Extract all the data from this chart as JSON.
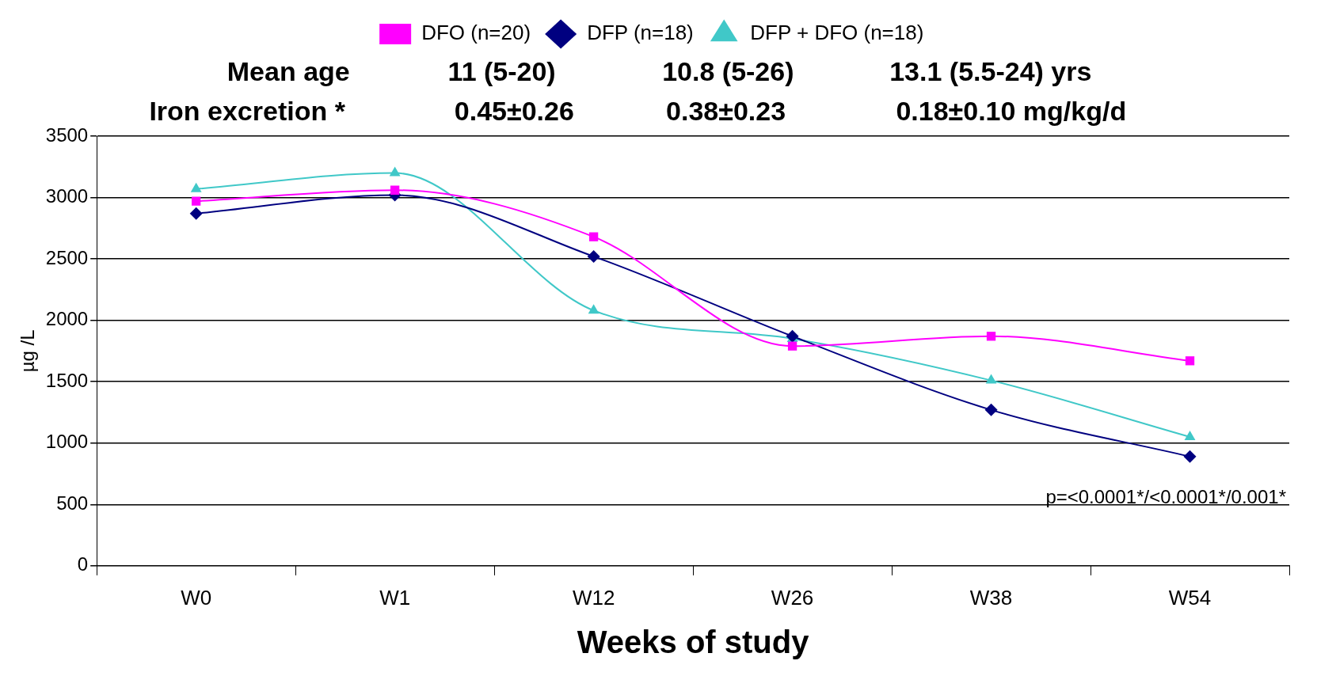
{
  "chart_data": {
    "type": "line",
    "xlabel": "Weeks of study",
    "ylabel": "µg /L",
    "categories": [
      "W0",
      "W1",
      "W12",
      "W26",
      "W38",
      "W54"
    ],
    "series": [
      {
        "name": "DFP + DFO (n=18)",
        "color": "#40c8c8",
        "marker": "triangle",
        "values": [
          3070,
          3200,
          2080,
          1850,
          1510,
          1050
        ]
      },
      {
        "name": "DFP (n=18)",
        "color": "#000080",
        "marker": "diamond",
        "values": [
          2870,
          3020,
          2520,
          1870,
          1270,
          890
        ]
      },
      {
        "name": "DFO (n=20)",
        "color": "#ff00ff",
        "marker": "square",
        "values": [
          2970,
          3060,
          2680,
          1790,
          1870,
          1670
        ]
      }
    ],
    "ylim": [
      0,
      3500
    ],
    "yticks": [
      0,
      500,
      1000,
      1500,
      2000,
      2500,
      3000,
      3500
    ],
    "grid": "y",
    "legend": "top",
    "line_style": "solid",
    "annotations": [
      "Mean age",
      "11 (5-20)",
      "10.8 (5-26)",
      "13.1 (5.5-24) yrs",
      "Iron excretion *",
      "0.45±0.26",
      "0.38±0.23",
      "0.18±0.10 mg/kg/d",
      "p=<0.0001*/<0.0001*/0.001*"
    ]
  }
}
